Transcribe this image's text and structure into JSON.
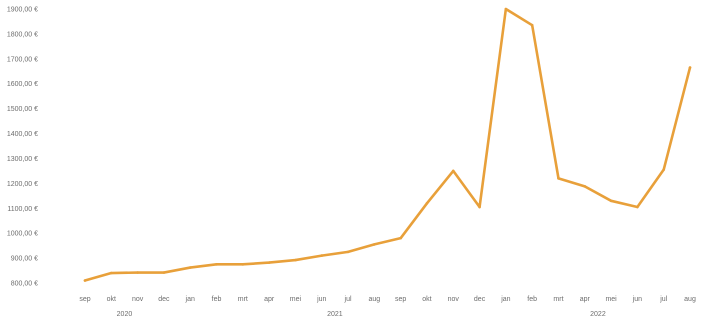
{
  "chart_data": {
    "type": "line",
    "title": "",
    "xlabel": "",
    "ylabel": "",
    "ylim": [
      800,
      1900
    ],
    "grid": false,
    "legend": "none",
    "y_ticks": [
      800,
      900,
      1000,
      1100,
      1200,
      1300,
      1400,
      1500,
      1600,
      1700,
      1800,
      1900
    ],
    "y_tick_labels": [
      "800,00 €",
      "900,00 €",
      "1000,00 €",
      "1100,00 €",
      "1200,00 €",
      "1300,00 €",
      "1400,00 €",
      "1500,00 €",
      "1600,00 €",
      "1700,00 €",
      "1800,00 €",
      "1900,00 €"
    ],
    "categories": [
      "sep",
      "okt",
      "nov",
      "dec",
      "jan",
      "feb",
      "mrt",
      "apr",
      "mei",
      "jun",
      "jul",
      "aug",
      "sep",
      "okt",
      "nov",
      "dec",
      "jan",
      "feb",
      "mrt",
      "apr",
      "mei",
      "jun",
      "jul",
      "aug"
    ],
    "years": [
      {
        "label": "2020",
        "start_index": 0,
        "end_index": 3
      },
      {
        "label": "2021",
        "start_index": 4,
        "end_index": 15
      },
      {
        "label": "2022",
        "start_index": 16,
        "end_index": 23
      }
    ],
    "series": [
      {
        "color": "#e8a03a",
        "values": [
          810,
          840,
          842,
          842,
          862,
          875,
          875,
          882,
          892,
          910,
          925,
          955,
          980,
          1120,
          1250,
          1105,
          1900,
          1835,
          1220,
          1188,
          1130,
          1105,
          1255,
          1665
        ]
      }
    ]
  }
}
